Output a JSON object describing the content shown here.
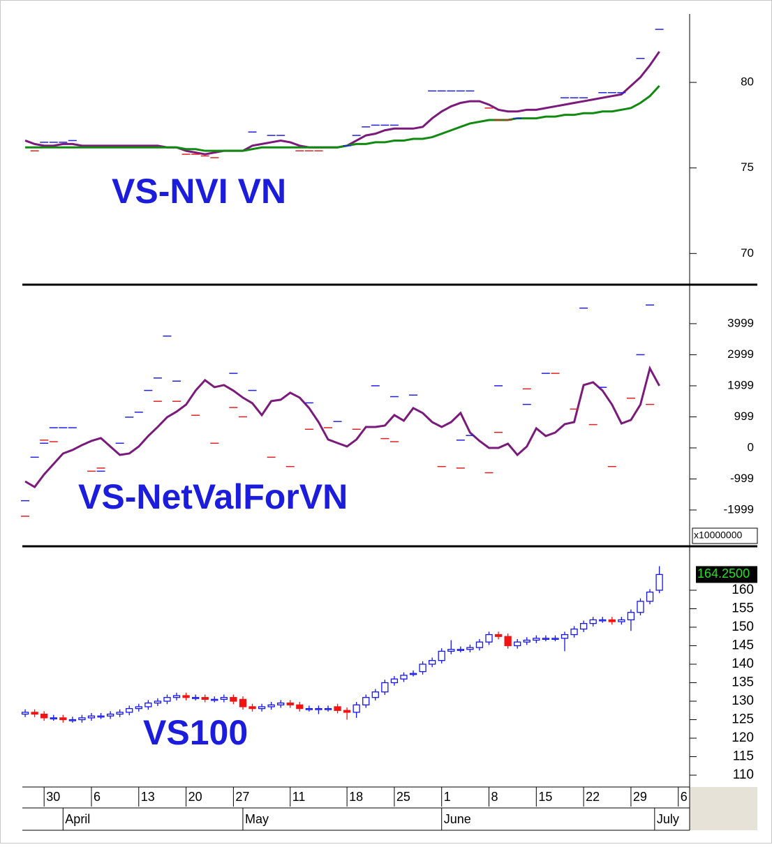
{
  "chart_data": [
    {
      "type": "line",
      "title": "VS-NVI VN",
      "xlim": [
        -0.3,
        70.2
      ],
      "ylim": [
        68.3,
        84.0
      ],
      "yticks": [
        70,
        75,
        80
      ],
      "series": [
        {
          "color": "#7a1a7a",
          "values": [
            76.6,
            76.4,
            76.3,
            76.3,
            76.4,
            76.4,
            76.3,
            76.3,
            76.3,
            76.3,
            76.3,
            76.3,
            76.3,
            76.3,
            76.3,
            76.2,
            76.2,
            76.0,
            75.9,
            75.8,
            75.9,
            76.0,
            76.0,
            76.0,
            76.3,
            76.4,
            76.5,
            76.6,
            76.5,
            76.3,
            76.2,
            76.2,
            76.2,
            76.2,
            76.3,
            76.6,
            76.9,
            77.0,
            77.2,
            77.3,
            77.3,
            77.3,
            77.4,
            77.9,
            78.3,
            78.6,
            78.8,
            78.9,
            78.9,
            78.7,
            78.4,
            78.3,
            78.3,
            78.4,
            78.4,
            78.5,
            78.6,
            78.7,
            78.8,
            78.9,
            79.0,
            79.1,
            79.2,
            79.3,
            79.8,
            80.3,
            81.0,
            81.8
          ]
        },
        {
          "color": "#108a10",
          "values": [
            76.2,
            76.2,
            76.2,
            76.2,
            76.2,
            76.2,
            76.2,
            76.2,
            76.2,
            76.2,
            76.2,
            76.2,
            76.2,
            76.2,
            76.2,
            76.2,
            76.2,
            76.1,
            76.1,
            76.0,
            76.0,
            76.0,
            76.0,
            76.0,
            76.1,
            76.2,
            76.2,
            76.2,
            76.2,
            76.2,
            76.2,
            76.2,
            76.2,
            76.2,
            76.3,
            76.4,
            76.4,
            76.5,
            76.5,
            76.6,
            76.6,
            76.7,
            76.7,
            76.8,
            77.0,
            77.2,
            77.4,
            77.6,
            77.7,
            77.8,
            77.8,
            77.8,
            77.9,
            77.9,
            77.9,
            78.0,
            78.0,
            78.1,
            78.1,
            78.2,
            78.2,
            78.3,
            78.3,
            78.4,
            78.5,
            78.8,
            79.2,
            79.8
          ]
        }
      ],
      "markers": [
        {
          "color": "#2020e0",
          "x": [
            2,
            3,
            4,
            5,
            24,
            26,
            27,
            34,
            35,
            36,
            37,
            38,
            39,
            43,
            44,
            45,
            46,
            47,
            52,
            57,
            58,
            59,
            61,
            62,
            63,
            65,
            67
          ],
          "values": [
            76.5,
            76.5,
            76.5,
            76.6,
            77.1,
            76.9,
            76.9,
            76.3,
            76.9,
            77.4,
            77.5,
            77.5,
            77.5,
            79.5,
            79.5,
            79.5,
            79.5,
            79.5,
            77.9,
            79.1,
            79.1,
            79.1,
            79.4,
            79.4,
            79.4,
            81.4,
            83.1
          ]
        },
        {
          "color": "#e02020",
          "x": [
            1,
            17,
            18,
            19,
            20,
            29,
            30,
            31,
            49,
            50,
            51
          ],
          "values": [
            76.0,
            75.8,
            75.8,
            75.7,
            75.6,
            76.0,
            76.0,
            76.0,
            78.5,
            77.8,
            77.8
          ]
        }
      ]
    },
    {
      "type": "line",
      "title": "VS-NetValForVN",
      "y_unit_label": "x10000000",
      "xlim": [
        -0.3,
        70.2
      ],
      "ylim": [
        -3100,
        5210
      ],
      "yticks": [
        3999,
        2999,
        1999,
        999,
        0,
        -999,
        -1999
      ],
      "series": [
        {
          "color": "#7a1a7a",
          "values": [
            -1079,
            -1258,
            -854,
            -517,
            -180,
            -67,
            90,
            225,
            315,
            45,
            -225,
            -180,
            45,
            382,
            674,
            989,
            1168,
            1393,
            1843,
            2180,
            1955,
            2022,
            1843,
            1618,
            1438,
            1056,
            1506,
            1551,
            1775,
            1618,
            1281,
            831,
            270,
            157,
            45,
            270,
            674,
            674,
            719,
            1056,
            876,
            1281,
            1124,
            831,
            674,
            831,
            1124,
            494,
            225,
            0,
            0,
            135,
            -225,
            45,
            629,
            382,
            494,
            764,
            831,
            2022,
            2112,
            1843,
            1393,
            786,
            899,
            1393,
            2562,
            2000
          ]
        }
      ],
      "markers": [
        {
          "color": "#2020e0",
          "x": [
            0,
            1,
            2,
            3,
            4,
            5,
            8,
            10,
            11,
            12,
            13,
            14,
            15,
            16,
            22,
            24,
            30,
            33,
            37,
            39,
            41,
            46,
            47,
            50,
            53,
            55,
            59,
            61,
            65,
            66
          ],
          "values": [
            -1700,
            -300,
            150,
            650,
            650,
            650,
            -750,
            150,
            990,
            1150,
            1850,
            2250,
            3600,
            2150,
            2400,
            1850,
            1450,
            850,
            2000,
            1650,
            1700,
            250,
            400,
            2000,
            1400,
            2400,
            4500,
            1950,
            3000,
            4600
          ]
        },
        {
          "color": "#e02020",
          "x": [
            0,
            2,
            3,
            7,
            8,
            14,
            16,
            18,
            20,
            22,
            23,
            26,
            28,
            30,
            32,
            35,
            38,
            39,
            44,
            46,
            49,
            50,
            53,
            56,
            58,
            60,
            62,
            64,
            66
          ],
          "values": [
            -2200,
            250,
            200,
            -750,
            -650,
            1500,
            1500,
            1050,
            150,
            1300,
            1000,
            -300,
            -600,
            600,
            650,
            600,
            300,
            200,
            -600,
            -650,
            -800,
            500,
            1900,
            2400,
            1250,
            750,
            -600,
            1600,
            1400
          ]
        }
      ]
    },
    {
      "type": "candlestick",
      "title": "VS100",
      "xlim": [
        -0.3,
        70.2
      ],
      "ylim": [
        106.8,
        171.5
      ],
      "yticks": [
        110,
        115,
        120,
        125,
        130,
        135,
        140,
        145,
        150,
        155,
        160
      ],
      "up_color": "#1414f0",
      "down_color": "#f01414",
      "last_price": {
        "value": 164.25,
        "label": "164.2500"
      },
      "open": [
        126.5,
        127,
        126.5,
        125.5,
        125.5,
        125,
        125,
        125.5,
        126,
        126,
        126.5,
        127,
        128,
        128.5,
        129.5,
        130,
        131,
        131.5,
        131,
        131,
        130.5,
        130.5,
        131,
        130.5,
        128.5,
        128,
        128.5,
        129,
        129.5,
        129,
        128,
        128,
        128,
        128.5,
        127.5,
        127,
        129,
        131,
        132.5,
        135,
        136,
        137.5,
        138,
        140,
        141,
        143.5,
        144,
        144,
        144.5,
        146,
        148,
        147.5,
        145,
        146,
        146.5,
        147,
        147,
        147,
        148,
        149.5,
        151,
        152,
        152,
        151.5,
        152,
        154,
        157,
        160
      ],
      "high": [
        127.8,
        127.8,
        127.3,
        126.3,
        126.3,
        125.8,
        126.3,
        126.8,
        126.8,
        127.3,
        127.8,
        128.8,
        129.3,
        130.3,
        130.8,
        131.8,
        132.3,
        132.3,
        131.8,
        131.8,
        131.3,
        131.8,
        131.8,
        131.3,
        129.3,
        129.3,
        129.8,
        130.3,
        130.3,
        129.8,
        128.8,
        128.8,
        128.8,
        129.3,
        128.3,
        129.8,
        131.8,
        133.3,
        135.8,
        136.8,
        137.8,
        138.3,
        140.8,
        141.8,
        144.3,
        146.5,
        144.8,
        145.3,
        146.8,
        148.8,
        148.8,
        148.3,
        146.8,
        147.3,
        147.8,
        147.8,
        147.8,
        148.8,
        150.3,
        151.8,
        152.8,
        152.8,
        152.8,
        152.8,
        154.8,
        157.8,
        160.3,
        166.5
      ],
      "low": [
        125.7,
        125.7,
        124.7,
        124.7,
        124.2,
        124.2,
        124.2,
        124.7,
        125.2,
        125.2,
        125.7,
        126.2,
        127.2,
        127.7,
        128.7,
        129.2,
        130.2,
        130.2,
        130.2,
        129.7,
        129.7,
        129.7,
        129.2,
        127.7,
        127.2,
        127.2,
        127.7,
        128.2,
        128.2,
        127.2,
        127.2,
        126.5,
        127.2,
        126.7,
        125,
        125.5,
        128.2,
        130.2,
        131.7,
        134.2,
        135.2,
        136.7,
        137.2,
        139.2,
        140.2,
        142.7,
        143.2,
        143.2,
        143.7,
        145.2,
        146.7,
        144.2,
        144.2,
        145.2,
        145.7,
        146.2,
        146.2,
        143.5,
        147.2,
        148.7,
        150.2,
        151.2,
        150.7,
        150.7,
        149,
        153.2,
        156.2,
        159.2
      ],
      "close": [
        127,
        126.5,
        125.5,
        125.5,
        125,
        125,
        125.5,
        126,
        126,
        126.5,
        127,
        128,
        128.5,
        129.5,
        130,
        131,
        131.5,
        131,
        131,
        130.5,
        130.5,
        131,
        130,
        128.5,
        128,
        128.5,
        129,
        129.5,
        129,
        128,
        128,
        128,
        128,
        127.5,
        127,
        129,
        131,
        132.5,
        135,
        136,
        137,
        137.5,
        140,
        141,
        143.5,
        144,
        144,
        144.5,
        146,
        148,
        147.5,
        145,
        146,
        146.5,
        147,
        147,
        147,
        148,
        149.5,
        151,
        152,
        152,
        151.5,
        152,
        154,
        157,
        159.5,
        164.25
      ],
      "xticks": [
        {
          "value": 2,
          "label": "30"
        },
        {
          "value": 7,
          "label": "6"
        },
        {
          "value": 12,
          "label": "13"
        },
        {
          "value": 17,
          "label": "20"
        },
        {
          "value": 22,
          "label": "27"
        },
        {
          "value": 28,
          "label": "11"
        },
        {
          "value": 34,
          "label": "18"
        },
        {
          "value": 39,
          "label": "25"
        },
        {
          "value": 44,
          "label": "1"
        },
        {
          "value": 49,
          "label": "8"
        },
        {
          "value": 54,
          "label": "15"
        },
        {
          "value": 59,
          "label": "22"
        },
        {
          "value": 64,
          "label": "29"
        },
        {
          "value": 69,
          "label": "6"
        }
      ],
      "month_ticks": [
        {
          "value": 4,
          "label": "April"
        },
        {
          "value": 23,
          "label": "May"
        },
        {
          "value": 44,
          "label": "June"
        },
        {
          "value": 66.5,
          "label": "July"
        }
      ]
    }
  ]
}
